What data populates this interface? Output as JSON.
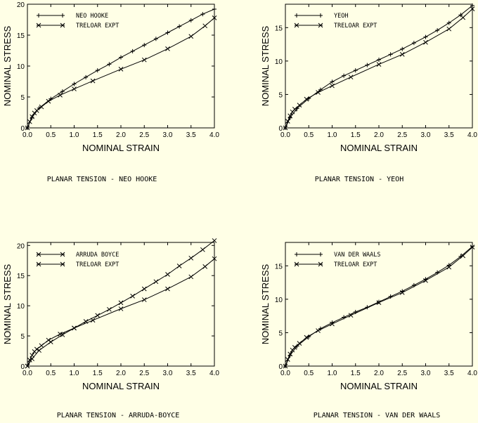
{
  "chart_data": [
    {
      "type": "line",
      "caption": "PLANAR TENSION - NEO HOOKE",
      "xlabel": "NOMINAL STRAIN",
      "ylabel": "NOMINAL STRESS",
      "xlim": [
        0,
        4.0
      ],
      "ylim": [
        0,
        20
      ],
      "xticks": [
        "0.0",
        "0.5",
        "1.0",
        "1.5",
        "2.0",
        "2.5",
        "3.0",
        "3.5",
        "4.0"
      ],
      "yticks": [
        "0",
        "5",
        "10",
        "15",
        "20"
      ],
      "legend_position": "top-left",
      "series": [
        {
          "name": "NEO HOOKE",
          "marker": "+",
          "x": [
            0.0,
            0.1,
            0.25,
            0.5,
            0.75,
            1.0,
            1.25,
            1.5,
            1.75,
            2.0,
            2.25,
            2.5,
            2.75,
            3.0,
            3.25,
            3.5,
            3.75,
            4.0
          ],
          "y": [
            0.0,
            1.7,
            3.2,
            4.7,
            5.9,
            7.1,
            8.2,
            9.3,
            10.3,
            11.4,
            12.4,
            13.4,
            14.4,
            15.4,
            16.4,
            17.4,
            18.4,
            19.2
          ]
        },
        {
          "name": "TRELOAR EXPT",
          "marker": "x",
          "x": [
            0.0,
            0.05,
            0.1,
            0.15,
            0.2,
            0.3,
            0.45,
            0.7,
            1.0,
            1.4,
            2.0,
            2.5,
            3.0,
            3.5,
            3.8,
            4.0
          ],
          "y": [
            0.0,
            1.0,
            1.8,
            2.4,
            2.8,
            3.4,
            4.3,
            5.3,
            6.3,
            7.6,
            9.5,
            11.0,
            12.8,
            14.8,
            16.5,
            17.8
          ]
        }
      ]
    },
    {
      "type": "line",
      "caption": "PLANAR TENSION - YEOH",
      "xlabel": "NOMINAL STRAIN",
      "ylabel": "NOMINAL STRESS",
      "xlim": [
        0,
        4.0
      ],
      "ylim": [
        0,
        18.5
      ],
      "xticks": [
        "0.0",
        "0.5",
        "1.0",
        "1.5",
        "2.0",
        "2.5",
        "3.0",
        "3.5",
        "4.0"
      ],
      "yticks": [
        "0",
        "5",
        "10",
        "15"
      ],
      "legend_position": "top-left",
      "series": [
        {
          "name": "YEOH",
          "marker": "+",
          "x": [
            0.0,
            0.1,
            0.25,
            0.5,
            0.75,
            1.0,
            1.25,
            1.5,
            1.75,
            2.0,
            2.25,
            2.5,
            2.75,
            3.0,
            3.25,
            3.5,
            3.75,
            4.0
          ],
          "y": [
            0.0,
            1.5,
            2.9,
            4.4,
            5.7,
            6.9,
            7.8,
            8.6,
            9.4,
            10.2,
            11.0,
            11.8,
            12.7,
            13.6,
            14.6,
            15.7,
            16.9,
            18.3
          ]
        },
        {
          "name": "TRELOAR EXPT",
          "marker": "x",
          "x": [
            0.0,
            0.05,
            0.1,
            0.15,
            0.2,
            0.3,
            0.45,
            0.7,
            1.0,
            1.4,
            2.0,
            2.5,
            3.0,
            3.5,
            3.8,
            4.0
          ],
          "y": [
            0.0,
            1.0,
            1.8,
            2.4,
            2.8,
            3.4,
            4.3,
            5.3,
            6.3,
            7.6,
            9.5,
            11.0,
            12.8,
            14.8,
            16.5,
            17.8
          ]
        }
      ]
    },
    {
      "type": "line",
      "caption": "PLANAR TENSION - ARRUDA-BOYCE",
      "xlabel": "NOMINAL STRAIN",
      "ylabel": "NOMINAL STRESS",
      "xlim": [
        0,
        4.0
      ],
      "ylim": [
        0,
        20.5
      ],
      "xticks": [
        "0.0",
        "0.5",
        "1.0",
        "1.5",
        "2.0",
        "2.5",
        "3.0",
        "3.5",
        "4.0"
      ],
      "yticks": [
        "0",
        "5",
        "10",
        "15",
        "20"
      ],
      "legend_position": "top-left",
      "series": [
        {
          "name": "ARRUDA BOYCE",
          "marker": "x",
          "x": [
            0.0,
            0.1,
            0.25,
            0.5,
            0.75,
            1.0,
            1.25,
            1.5,
            1.75,
            2.0,
            2.25,
            2.5,
            2.75,
            3.0,
            3.25,
            3.5,
            3.75,
            4.0
          ],
          "y": [
            0.0,
            1.2,
            2.6,
            4.0,
            5.2,
            6.3,
            7.4,
            8.4,
            9.4,
            10.5,
            11.6,
            12.8,
            14.0,
            15.2,
            16.6,
            17.9,
            19.3,
            20.8
          ]
        },
        {
          "name": "TRELOAR EXPT",
          "marker": "x",
          "x": [
            0.0,
            0.05,
            0.1,
            0.15,
            0.2,
            0.3,
            0.45,
            0.7,
            1.0,
            1.4,
            2.0,
            2.5,
            3.0,
            3.5,
            3.8,
            4.0
          ],
          "y": [
            0.0,
            1.0,
            1.8,
            2.4,
            2.8,
            3.4,
            4.3,
            5.3,
            6.3,
            7.6,
            9.5,
            11.0,
            12.8,
            14.8,
            16.5,
            17.8
          ]
        }
      ]
    },
    {
      "type": "line",
      "caption": "PLANAR TENSION - VAN DER WAALS",
      "xlabel": "NOMINAL STRAIN",
      "ylabel": "NOMINAL STRESS",
      "xlim": [
        0,
        4.0
      ],
      "ylim": [
        0,
        18.5
      ],
      "xticks": [
        "0.0",
        "0.5",
        "1.0",
        "1.5",
        "2.0",
        "2.5",
        "3.0",
        "3.5",
        "4.0"
      ],
      "yticks": [
        "0",
        "5",
        "10",
        "15"
      ],
      "legend_position": "top-left",
      "series": [
        {
          "name": "VAN DER WAALS",
          "marker": "+",
          "x": [
            0.0,
            0.1,
            0.25,
            0.5,
            0.75,
            1.0,
            1.25,
            1.5,
            1.75,
            2.0,
            2.25,
            2.5,
            2.75,
            3.0,
            3.25,
            3.5,
            3.75,
            4.0
          ],
          "y": [
            0.0,
            1.6,
            3.0,
            4.4,
            5.6,
            6.5,
            7.3,
            8.1,
            8.8,
            9.6,
            10.4,
            11.2,
            12.1,
            13.0,
            14.0,
            15.1,
            16.4,
            17.9
          ]
        },
        {
          "name": "TRELOAR EXPT",
          "marker": "x",
          "x": [
            0.0,
            0.05,
            0.1,
            0.15,
            0.2,
            0.3,
            0.45,
            0.7,
            1.0,
            1.4,
            2.0,
            2.5,
            3.0,
            3.5,
            3.8,
            4.0
          ],
          "y": [
            0.0,
            1.0,
            1.8,
            2.4,
            2.8,
            3.4,
            4.3,
            5.3,
            6.3,
            7.6,
            9.5,
            11.0,
            12.8,
            14.8,
            16.5,
            17.8
          ]
        }
      ]
    }
  ]
}
